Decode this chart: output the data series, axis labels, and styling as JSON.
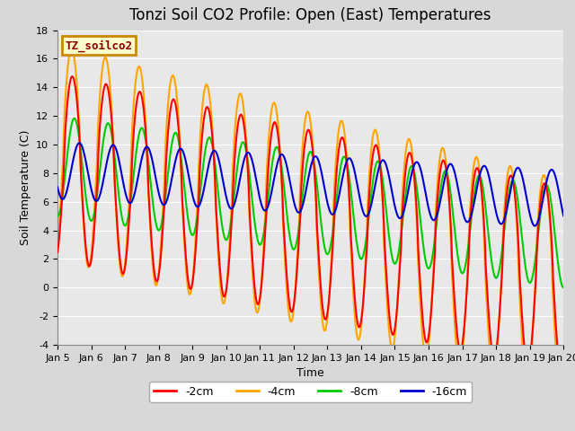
{
  "title": "Tonzi Soil CO2 Profile: Open (East) Temperatures",
  "xlabel": "Time",
  "ylabel": "Soil Temperature (C)",
  "ylim": [
    -4,
    18
  ],
  "colors": {
    "-2cm": "#ff0000",
    "-4cm": "#ffa500",
    "-8cm": "#00cc00",
    "-16cm": "#0000cc"
  },
  "legend_label": "TZ_soilco2",
  "legend_bg": "#ffffcc",
  "legend_border": "#cc8800",
  "plot_bg": "#e8e8e8",
  "grid_color": "#ffffff",
  "title_fontsize": 12,
  "axis_fontsize": 9,
  "tick_fontsize": 8,
  "line_width": 1.5,
  "xtick_labels": [
    "Jan 5",
    "Jan 6",
    "Jan 7",
    "Jan 8",
    "Jan 9",
    "Jan 10",
    "Jan 11",
    "Jan 12",
    "Jan 13",
    "Jan 14",
    "Jan 15",
    "Jan 16",
    "Jan 17",
    "Jan 18",
    "Jan 19",
    "Jan 20"
  ]
}
